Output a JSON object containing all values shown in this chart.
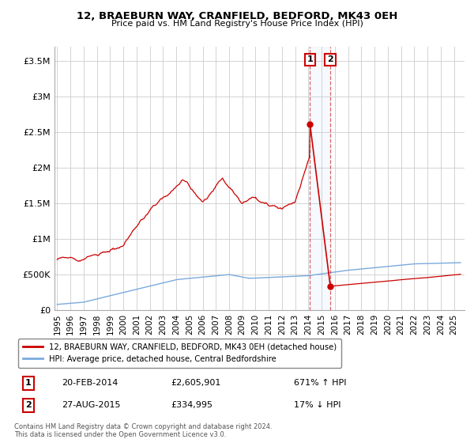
{
  "title": "12, BRAEBURN WAY, CRANFIELD, BEDFORD, MK43 0EH",
  "subtitle": "Price paid vs. HM Land Registry's House Price Index (HPI)",
  "ylabel_ticks": [
    "£0",
    "£500K",
    "£1M",
    "£1.5M",
    "£2M",
    "£2.5M",
    "£3M",
    "£3.5M"
  ],
  "ylabel_values": [
    0,
    500000,
    1000000,
    1500000,
    2000000,
    2500000,
    3000000,
    3500000
  ],
  "ylim": [
    0,
    3700000
  ],
  "xlim_start": 1994.8,
  "xlim_end": 2025.8,
  "hpi_color": "#7aaadd",
  "price_color": "#cc0000",
  "marker1_date": 2014.12,
  "marker2_date": 2015.65,
  "marker1_price": 2605901,
  "marker2_price": 334995,
  "legend1_label": "12, BRAEBURN WAY, CRANFIELD, BEDFORD, MK43 0EH (detached house)",
  "legend2_label": "HPI: Average price, detached house, Central Bedfordshire",
  "note1_date": "20-FEB-2014",
  "note1_price": "£2,605,901",
  "note1_hpi": "671% ↑ HPI",
  "note2_date": "27-AUG-2015",
  "note2_price": "£334,995",
  "note2_hpi": "17% ↓ HPI",
  "copyright": "Contains HM Land Registry data © Crown copyright and database right 2024.\nThis data is licensed under the Open Government Licence v3.0.",
  "background_color": "#ffffff",
  "grid_color": "#cccccc"
}
